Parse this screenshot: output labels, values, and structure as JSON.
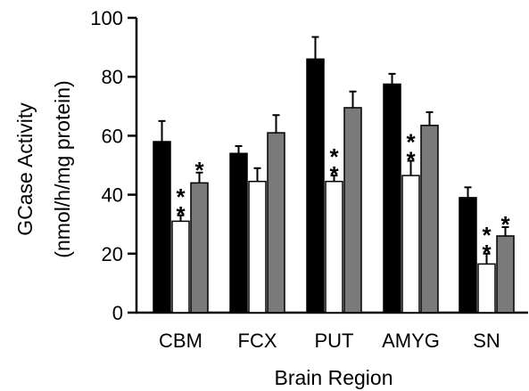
{
  "chart_data": {
    "type": "bar",
    "title": "",
    "xlabel": "Brain Region",
    "ylabel_line1": "GCase Activity",
    "ylabel_line2": "(nmol/h/mg protein)",
    "ylim": [
      0,
      100
    ],
    "yticks": [
      "0",
      "20",
      "40",
      "60",
      "80",
      "100"
    ],
    "categories": [
      "CBM",
      "FCX",
      "PUT",
      "AMYG",
      "SN"
    ],
    "series": [
      {
        "color": "#000000",
        "values": [
          58,
          54,
          86,
          77.5,
          39
        ],
        "errors": [
          7,
          2.5,
          7.5,
          3.5,
          3.5
        ],
        "significance": [
          "",
          "",
          "",
          "",
          ""
        ]
      },
      {
        "color": "#ffffff",
        "values": [
          31,
          44.5,
          44.5,
          46.5,
          16.5
        ],
        "errors": [
          2,
          4.5,
          2,
          5,
          3.5
        ],
        "significance": [
          "**",
          "",
          "**",
          "**",
          "**"
        ]
      },
      {
        "color": "#7a7a7a",
        "values": [
          44,
          61,
          69.5,
          63.5,
          26
        ],
        "errors": [
          3.5,
          6,
          5.5,
          4.5,
          3
        ],
        "significance": [
          "*",
          "",
          "",
          "",
          "*"
        ]
      }
    ],
    "grid": false,
    "legend": "none"
  }
}
